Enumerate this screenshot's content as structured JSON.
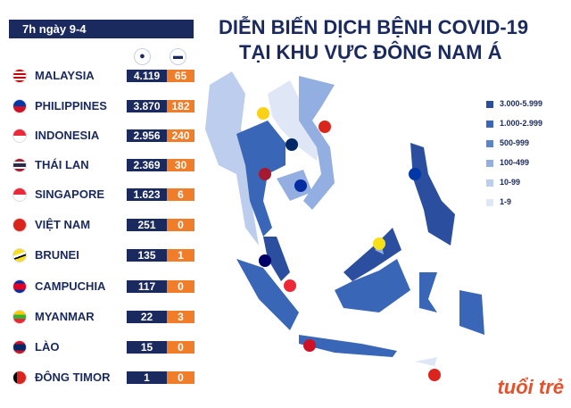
{
  "header": {
    "date": "7h ngày 9-4"
  },
  "columns": {
    "cases_icon": "person-head-icon",
    "deaths_icon": "bed-icon"
  },
  "title": {
    "line1": "DIỄN BIẾN DỊCH BỆNH COVID-19",
    "line2": "TẠI KHU VỰC ĐÔNG NAM Á"
  },
  "countries": [
    {
      "name": "MALAYSIA",
      "cases": "4.119",
      "deaths": "65",
      "flag": "malaysia-flag"
    },
    {
      "name": "PHILIPPINES",
      "cases": "3.870",
      "deaths": "182",
      "flag": "philippines-flag"
    },
    {
      "name": "INDONESIA",
      "cases": "2.956",
      "deaths": "240",
      "flag": "indonesia-flag"
    },
    {
      "name": "THÁI LAN",
      "cases": "2.369",
      "deaths": "30",
      "flag": "thailand-flag"
    },
    {
      "name": "SINGAPORE",
      "cases": "1.623",
      "deaths": "6",
      "flag": "singapore-flag"
    },
    {
      "name": "VIỆT NAM",
      "cases": "251",
      "deaths": "0",
      "flag": "vietnam-flag"
    },
    {
      "name": "BRUNEI",
      "cases": "135",
      "deaths": "1",
      "flag": "brunei-flag"
    },
    {
      "name": "CAMPUCHIA",
      "cases": "117",
      "deaths": "0",
      "flag": "cambodia-flag"
    },
    {
      "name": "MYANMAR",
      "cases": "22",
      "deaths": "3",
      "flag": "myanmar-flag"
    },
    {
      "name": "LÀO",
      "cases": "15",
      "deaths": "0",
      "flag": "laos-flag"
    },
    {
      "name": "ĐÔNG TIMOR",
      "cases": "1",
      "deaths": "0",
      "flag": "timor-flag"
    }
  ],
  "legend": [
    {
      "label": "3.000-5.999",
      "color": "#2b4f9e"
    },
    {
      "label": "1.000-2.999",
      "color": "#3a66b8"
    },
    {
      "label": "500-999",
      "color": "#5b84cc"
    },
    {
      "label": "100-499",
      "color": "#93aee0"
    },
    {
      "label": "10-99",
      "color": "#bccdee"
    },
    {
      "label": "1-9",
      "color": "#dfe6f6"
    }
  ],
  "colors": {
    "navy": "#1b2a5e",
    "orange": "#f07d2a"
  },
  "logo": {
    "text": "tuổi trẻ online"
  }
}
